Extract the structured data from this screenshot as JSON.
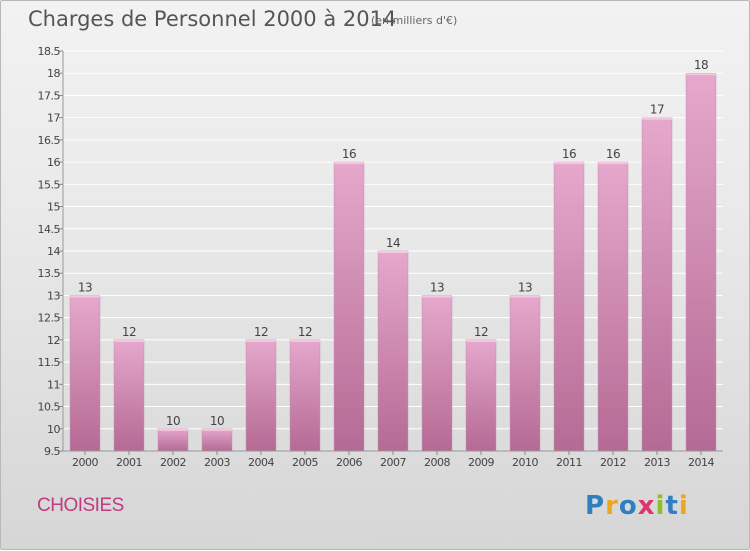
{
  "header": {
    "title": "Charges de Personnel 2000 à 2014",
    "unit": "(en milliers d'€)"
  },
  "footer": {
    "commune": "CHOISIES",
    "logo": {
      "text": "Proxiti",
      "letters": [
        {
          "char": "P",
          "color": "#2f7fc1"
        },
        {
          "char": "r",
          "color": "#f0a51c"
        },
        {
          "char": "o",
          "color": "#2f7fc1"
        },
        {
          "char": "x",
          "color": "#e0336f"
        },
        {
          "char": "i",
          "color": "#8cbf26"
        },
        {
          "char": "t",
          "color": "#2f7fc1"
        },
        {
          "char": "i",
          "color": "#f0a51c"
        }
      ]
    }
  },
  "colors": {
    "bar_top": "#e6a8cc",
    "bar_bottom": "#b46a94",
    "grid": "#ffffff",
    "axis_text": "#444444"
  },
  "chart_data": {
    "type": "bar",
    "categories": [
      "2000",
      "2001",
      "2002",
      "2003",
      "2004",
      "2005",
      "2006",
      "2007",
      "2008",
      "2009",
      "2010",
      "2011",
      "2012",
      "2013",
      "2014"
    ],
    "values": [
      13,
      12,
      10,
      10,
      12,
      12,
      16,
      14,
      13,
      12,
      13,
      16,
      16,
      17,
      18
    ],
    "data_labels": [
      "13",
      "12",
      "10",
      "10",
      "12",
      "12",
      "16",
      "14",
      "13",
      "12",
      "13",
      "16",
      "16",
      "17",
      "18"
    ],
    "ylim": [
      9.5,
      18.5
    ],
    "yticks": [
      "9.5",
      "10",
      "10.5",
      "11",
      "11.5",
      "12",
      "12.5",
      "13",
      "13.5",
      "14",
      "14.5",
      "15",
      "15.5",
      "16",
      "16.5",
      "17",
      "17.5",
      "18",
      "18.5"
    ],
    "grid": true
  }
}
